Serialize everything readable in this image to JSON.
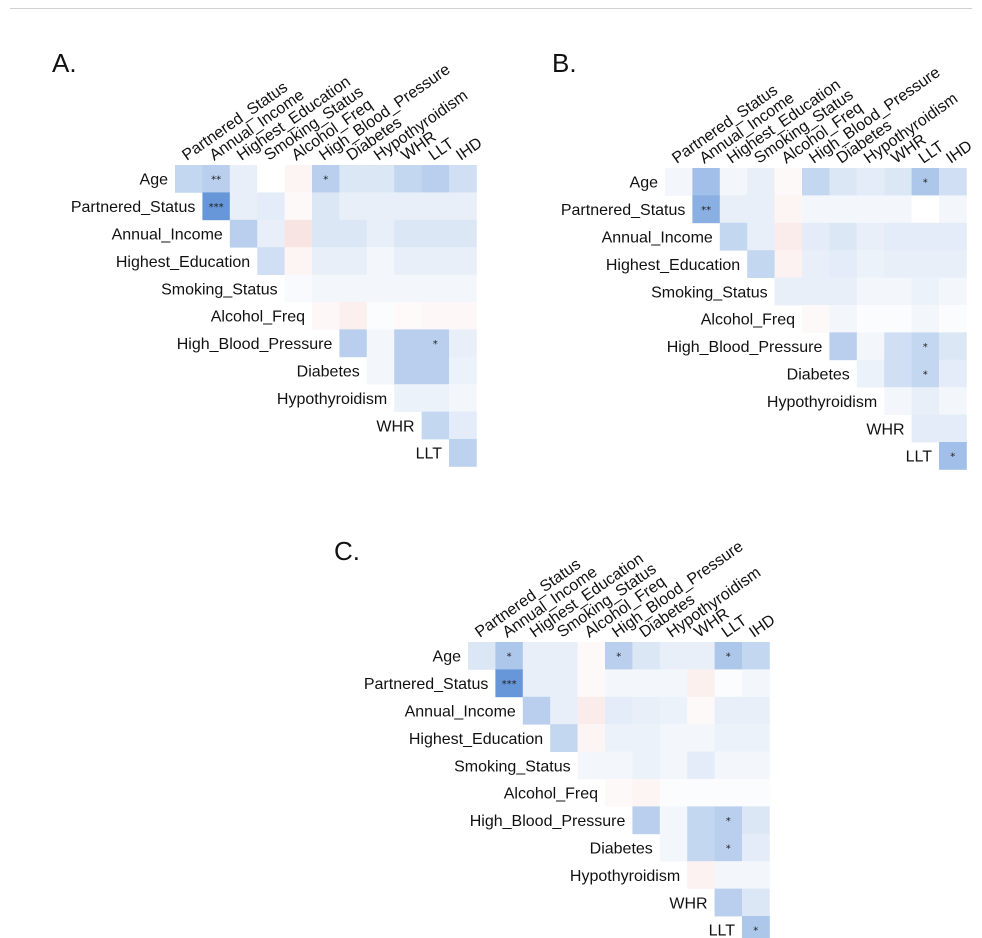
{
  "chart_data": [
    {
      "type": "heatmap",
      "title": "A.",
      "rows": [
        "Age",
        "Partnered_Status",
        "Annual_Income",
        "Highest_Education",
        "Smoking_Status",
        "Alcohol_Freq",
        "High_Blood_Pressure",
        "Diabetes",
        "Hypothyroidism",
        "WHR",
        "LLT"
      ],
      "columns": [
        "Partnered_Status",
        "Annual_Income",
        "Highest_Education",
        "Smoking_Status",
        "Alcohol_Freq",
        "High_Blood_Pressure",
        "Diabetes",
        "Hypothyroidism",
        "WHR",
        "LLT",
        "IHD"
      ],
      "values": [
        [
          0.25,
          0.3,
          0.1,
          0.0,
          -0.08,
          0.3,
          0.15,
          0.15,
          0.25,
          0.3,
          0.2
        ],
        [
          null,
          0.65,
          0.1,
          0.12,
          -0.05,
          0.15,
          0.1,
          0.1,
          0.1,
          0.1,
          0.1
        ],
        [
          null,
          null,
          0.3,
          0.1,
          -0.2,
          0.15,
          0.15,
          0.1,
          0.15,
          0.15,
          0.15
        ],
        [
          null,
          null,
          null,
          0.2,
          -0.08,
          0.1,
          0.1,
          0.05,
          0.1,
          0.1,
          0.1
        ],
        [
          null,
          null,
          null,
          null,
          0.03,
          0.05,
          0.05,
          0.05,
          0.05,
          0.05,
          0.05
        ],
        [
          null,
          null,
          null,
          null,
          null,
          -0.06,
          -0.12,
          0.02,
          -0.04,
          -0.06,
          -0.06
        ],
        [
          null,
          null,
          null,
          null,
          null,
          null,
          0.3,
          0.05,
          0.3,
          0.3,
          0.1
        ],
        [
          null,
          null,
          null,
          null,
          null,
          null,
          null,
          0.05,
          0.3,
          0.3,
          0.08
        ],
        [
          null,
          null,
          null,
          null,
          null,
          null,
          null,
          null,
          0.08,
          0.08,
          0.05
        ],
        [
          null,
          null,
          null,
          null,
          null,
          null,
          null,
          null,
          null,
          0.25,
          0.12
        ],
        [
          null,
          null,
          null,
          null,
          null,
          null,
          null,
          null,
          null,
          null,
          0.28
        ]
      ],
      "significance": [
        {
          "row": 0,
          "col": 1,
          "stars": "**"
        },
        {
          "row": 0,
          "col": 5,
          "stars": "*"
        },
        {
          "row": 1,
          "col": 1,
          "stars": "***"
        },
        {
          "row": 6,
          "col": 9,
          "stars": "*"
        }
      ],
      "colors": {
        "positive": "#5b8fd6",
        "negative": "#e8a59c",
        "neutral": "#ffffff"
      }
    },
    {
      "type": "heatmap",
      "title": "B.",
      "rows": [
        "Age",
        "Partnered_Status",
        "Annual_Income",
        "Highest_Education",
        "Smoking_Status",
        "Alcohol_Freq",
        "High_Blood_Pressure",
        "Diabetes",
        "Hypothyroidism",
        "WHR",
        "LLT"
      ],
      "columns": [
        "Partnered_Status",
        "Annual_Income",
        "Highest_Education",
        "Smoking_Status",
        "Alcohol_Freq",
        "High_Blood_Pressure",
        "Diabetes",
        "Hypothyroidism",
        "WHR",
        "LLT",
        "IHD"
      ],
      "values": [
        [
          0.05,
          0.4,
          0.05,
          0.1,
          -0.05,
          0.25,
          0.15,
          0.12,
          0.15,
          0.35,
          0.2
        ],
        [
          null,
          0.5,
          0.1,
          0.1,
          -0.08,
          0.05,
          0.05,
          0.05,
          0.05,
          0.0,
          0.05
        ],
        [
          null,
          null,
          0.25,
          0.1,
          -0.15,
          0.12,
          0.15,
          0.1,
          0.12,
          0.12,
          0.12
        ],
        [
          null,
          null,
          null,
          0.25,
          -0.1,
          0.1,
          0.12,
          0.08,
          0.1,
          0.1,
          0.1
        ],
        [
          null,
          null,
          null,
          null,
          0.1,
          0.1,
          0.1,
          0.05,
          0.05,
          0.08,
          0.05
        ],
        [
          null,
          null,
          null,
          null,
          null,
          -0.05,
          0.05,
          0.02,
          0.02,
          0.05,
          0.02
        ],
        [
          null,
          null,
          null,
          null,
          null,
          null,
          0.3,
          0.05,
          0.2,
          0.25,
          0.15
        ],
        [
          null,
          null,
          null,
          null,
          null,
          null,
          null,
          0.08,
          0.2,
          0.25,
          0.12
        ],
        [
          null,
          null,
          null,
          null,
          null,
          null,
          null,
          null,
          0.05,
          0.1,
          0.05
        ],
        [
          null,
          null,
          null,
          null,
          null,
          null,
          null,
          null,
          null,
          0.12,
          0.12
        ],
        [
          null,
          null,
          null,
          null,
          null,
          null,
          null,
          null,
          null,
          null,
          0.4
        ]
      ],
      "significance": [
        {
          "row": 0,
          "col": 9,
          "stars": "*"
        },
        {
          "row": 1,
          "col": 1,
          "stars": "**"
        },
        {
          "row": 6,
          "col": 9,
          "stars": "*"
        },
        {
          "row": 7,
          "col": 9,
          "stars": "*"
        },
        {
          "row": 10,
          "col": 10,
          "stars": "*"
        }
      ],
      "colors": {
        "positive": "#5b8fd6",
        "negative": "#e8a59c",
        "neutral": "#ffffff"
      }
    },
    {
      "type": "heatmap",
      "title": "C.",
      "rows": [
        "Age",
        "Partnered_Status",
        "Annual_Income",
        "Highest_Education",
        "Smoking_Status",
        "Alcohol_Freq",
        "High_Blood_Pressure",
        "Diabetes",
        "Hypothyroidism",
        "WHR",
        "LLT"
      ],
      "columns": [
        "Partnered_Status",
        "Annual_Income",
        "Highest_Education",
        "Smoking_Status",
        "Alcohol_Freq",
        "High_Blood_Pressure",
        "Diabetes",
        "Hypothyroidism",
        "WHR",
        "LLT",
        "IHD"
      ],
      "values": [
        [
          0.15,
          0.35,
          0.1,
          0.1,
          -0.05,
          0.3,
          0.15,
          0.1,
          0.1,
          0.35,
          0.25
        ],
        [
          null,
          0.65,
          0.1,
          0.1,
          -0.05,
          0.05,
          0.05,
          0.05,
          -0.12,
          0.02,
          0.05
        ],
        [
          null,
          null,
          0.3,
          0.1,
          -0.15,
          0.12,
          0.1,
          0.08,
          -0.05,
          0.1,
          0.1
        ],
        [
          null,
          null,
          null,
          0.25,
          -0.08,
          0.08,
          0.08,
          0.05,
          0.05,
          0.08,
          0.08
        ],
        [
          null,
          null,
          null,
          null,
          0.05,
          0.05,
          0.08,
          0.05,
          0.12,
          0.05,
          0.05
        ],
        [
          null,
          null,
          null,
          null,
          null,
          -0.05,
          -0.08,
          0.02,
          0.02,
          0.02,
          0.02
        ],
        [
          null,
          null,
          null,
          null,
          null,
          null,
          0.3,
          0.05,
          0.25,
          0.3,
          0.15
        ],
        [
          null,
          null,
          null,
          null,
          null,
          null,
          null,
          0.05,
          0.25,
          0.3,
          0.12
        ],
        [
          null,
          null,
          null,
          null,
          null,
          null,
          null,
          null,
          -0.1,
          0.05,
          0.05
        ],
        [
          null,
          null,
          null,
          null,
          null,
          null,
          null,
          null,
          null,
          0.3,
          0.15
        ],
        [
          null,
          null,
          null,
          null,
          null,
          null,
          null,
          null,
          null,
          null,
          0.35
        ]
      ],
      "significance": [
        {
          "row": 0,
          "col": 1,
          "stars": "*"
        },
        {
          "row": 0,
          "col": 5,
          "stars": "*"
        },
        {
          "row": 0,
          "col": 9,
          "stars": "*"
        },
        {
          "row": 1,
          "col": 1,
          "stars": "***"
        },
        {
          "row": 6,
          "col": 9,
          "stars": "*"
        },
        {
          "row": 7,
          "col": 9,
          "stars": "*"
        },
        {
          "row": 10,
          "col": 10,
          "stars": "*"
        }
      ],
      "colors": {
        "positive": "#5b8fd6",
        "negative": "#e8a59c",
        "neutral": "#ffffff"
      }
    }
  ]
}
